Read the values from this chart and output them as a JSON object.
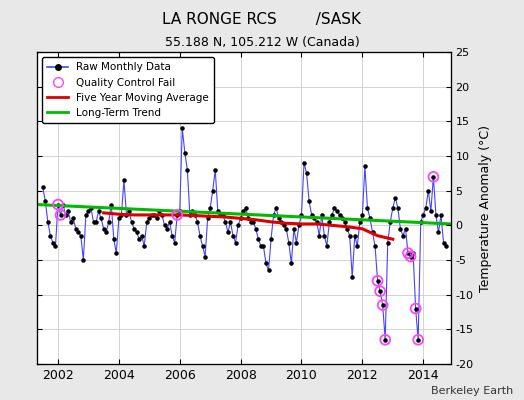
{
  "title": "LA RONGE RCS        /SASK",
  "subtitle": "55.188 N, 105.212 W (Canada)",
  "ylabel": "Temperature Anomaly (°C)",
  "credit": "Berkeley Earth",
  "ylim": [
    -20,
    25
  ],
  "xlim": [
    2001.3,
    2014.9
  ],
  "yticks": [
    -20,
    -15,
    -10,
    -5,
    0,
    5,
    10,
    15,
    20,
    25
  ],
  "xticks": [
    2002,
    2004,
    2006,
    2008,
    2010,
    2012,
    2014
  ],
  "bg_color": "#e8e8e8",
  "plot_bg": "#ffffff",
  "raw_line_color": "#4444ff",
  "raw_dot_color": "#000000",
  "qc_fail_color": "#ff44ff",
  "moving_avg_color": "#dd0000",
  "trend_color": "#00bb00",
  "raw_data": [
    [
      2001.5,
      5.5
    ],
    [
      2001.583,
      3.5
    ],
    [
      2001.667,
      0.5
    ],
    [
      2001.75,
      -1.5
    ],
    [
      2001.833,
      -2.5
    ],
    [
      2001.917,
      -3.0
    ],
    [
      2002.0,
      3.0
    ],
    [
      2002.083,
      1.5
    ],
    [
      2002.167,
      3.0
    ],
    [
      2002.25,
      1.5
    ],
    [
      2002.333,
      2.0
    ],
    [
      2002.417,
      0.5
    ],
    [
      2002.5,
      1.0
    ],
    [
      2002.583,
      -0.5
    ],
    [
      2002.667,
      -1.0
    ],
    [
      2002.75,
      -1.5
    ],
    [
      2002.833,
      -5.0
    ],
    [
      2002.917,
      1.5
    ],
    [
      2003.0,
      2.0
    ],
    [
      2003.083,
      2.5
    ],
    [
      2003.167,
      0.5
    ],
    [
      2003.25,
      0.5
    ],
    [
      2003.333,
      2.0
    ],
    [
      2003.417,
      1.0
    ],
    [
      2003.5,
      -0.5
    ],
    [
      2003.583,
      -1.0
    ],
    [
      2003.667,
      0.5
    ],
    [
      2003.75,
      3.0
    ],
    [
      2003.833,
      -2.0
    ],
    [
      2003.917,
      -4.0
    ],
    [
      2004.0,
      1.0
    ],
    [
      2004.083,
      1.5
    ],
    [
      2004.167,
      6.5
    ],
    [
      2004.25,
      1.5
    ],
    [
      2004.333,
      2.0
    ],
    [
      2004.417,
      0.5
    ],
    [
      2004.5,
      -0.5
    ],
    [
      2004.583,
      -1.0
    ],
    [
      2004.667,
      -2.0
    ],
    [
      2004.75,
      -1.5
    ],
    [
      2004.833,
      -3.0
    ],
    [
      2004.917,
      0.5
    ],
    [
      2005.0,
      1.0
    ],
    [
      2005.083,
      1.5
    ],
    [
      2005.167,
      1.5
    ],
    [
      2005.25,
      1.0
    ],
    [
      2005.333,
      2.0
    ],
    [
      2005.417,
      1.5
    ],
    [
      2005.5,
      0.0
    ],
    [
      2005.583,
      -0.5
    ],
    [
      2005.667,
      0.5
    ],
    [
      2005.75,
      -1.5
    ],
    [
      2005.833,
      -2.5
    ],
    [
      2005.917,
      1.5
    ],
    [
      2006.0,
      2.0
    ],
    [
      2006.083,
      14.0
    ],
    [
      2006.167,
      10.5
    ],
    [
      2006.25,
      8.0
    ],
    [
      2006.333,
      1.5
    ],
    [
      2006.417,
      2.0
    ],
    [
      2006.5,
      1.5
    ],
    [
      2006.583,
      0.5
    ],
    [
      2006.667,
      -1.5
    ],
    [
      2006.75,
      -3.0
    ],
    [
      2006.833,
      -4.5
    ],
    [
      2006.917,
      1.0
    ],
    [
      2007.0,
      2.5
    ],
    [
      2007.083,
      5.0
    ],
    [
      2007.167,
      8.0
    ],
    [
      2007.25,
      2.0
    ],
    [
      2007.333,
      1.5
    ],
    [
      2007.417,
      1.5
    ],
    [
      2007.5,
      0.5
    ],
    [
      2007.583,
      -1.0
    ],
    [
      2007.667,
      0.5
    ],
    [
      2007.75,
      -1.5
    ],
    [
      2007.833,
      -2.5
    ],
    [
      2007.917,
      0.0
    ],
    [
      2008.0,
      1.0
    ],
    [
      2008.083,
      2.0
    ],
    [
      2008.167,
      2.5
    ],
    [
      2008.25,
      1.0
    ],
    [
      2008.333,
      0.5
    ],
    [
      2008.417,
      0.5
    ],
    [
      2008.5,
      -0.5
    ],
    [
      2008.583,
      -2.0
    ],
    [
      2008.667,
      -3.0
    ],
    [
      2008.75,
      -3.0
    ],
    [
      2008.833,
      -5.5
    ],
    [
      2008.917,
      -6.5
    ],
    [
      2009.0,
      -2.0
    ],
    [
      2009.083,
      1.5
    ],
    [
      2009.167,
      2.5
    ],
    [
      2009.25,
      1.0
    ],
    [
      2009.333,
      0.5
    ],
    [
      2009.417,
      0.0
    ],
    [
      2009.5,
      -0.5
    ],
    [
      2009.583,
      -2.5
    ],
    [
      2009.667,
      -5.5
    ],
    [
      2009.75,
      -0.5
    ],
    [
      2009.833,
      -2.5
    ],
    [
      2009.917,
      0.0
    ],
    [
      2010.0,
      1.5
    ],
    [
      2010.083,
      9.0
    ],
    [
      2010.167,
      7.5
    ],
    [
      2010.25,
      3.5
    ],
    [
      2010.333,
      1.5
    ],
    [
      2010.417,
      1.0
    ],
    [
      2010.5,
      0.5
    ],
    [
      2010.583,
      -1.5
    ],
    [
      2010.667,
      1.5
    ],
    [
      2010.75,
      -1.5
    ],
    [
      2010.833,
      -3.0
    ],
    [
      2010.917,
      0.5
    ],
    [
      2011.0,
      1.5
    ],
    [
      2011.083,
      2.5
    ],
    [
      2011.167,
      2.0
    ],
    [
      2011.25,
      1.5
    ],
    [
      2011.333,
      1.0
    ],
    [
      2011.417,
      0.5
    ],
    [
      2011.5,
      -0.5
    ],
    [
      2011.583,
      -1.5
    ],
    [
      2011.667,
      -7.5
    ],
    [
      2011.75,
      -1.5
    ],
    [
      2011.833,
      -3.0
    ],
    [
      2011.917,
      0.5
    ],
    [
      2012.0,
      1.5
    ],
    [
      2012.083,
      8.5
    ],
    [
      2012.167,
      2.5
    ],
    [
      2012.25,
      1.0
    ],
    [
      2012.333,
      -1.0
    ],
    [
      2012.417,
      -3.0
    ],
    [
      2012.5,
      -8.0
    ],
    [
      2012.583,
      -9.5
    ],
    [
      2012.667,
      -11.5
    ],
    [
      2012.75,
      -16.5
    ],
    [
      2012.833,
      -2.5
    ],
    [
      2012.917,
      0.5
    ],
    [
      2013.0,
      2.5
    ],
    [
      2013.083,
      4.0
    ],
    [
      2013.167,
      2.5
    ],
    [
      2013.25,
      -0.5
    ],
    [
      2013.333,
      -1.5
    ],
    [
      2013.417,
      -0.5
    ],
    [
      2013.5,
      -4.0
    ],
    [
      2013.583,
      -4.5
    ],
    [
      2013.667,
      -4.0
    ],
    [
      2013.75,
      -12.0
    ],
    [
      2013.833,
      -16.5
    ],
    [
      2013.917,
      0.5
    ],
    [
      2014.0,
      1.5
    ],
    [
      2014.083,
      2.5
    ],
    [
      2014.167,
      5.0
    ],
    [
      2014.25,
      2.0
    ],
    [
      2014.333,
      7.0
    ],
    [
      2014.417,
      1.5
    ],
    [
      2014.5,
      -1.0
    ],
    [
      2014.583,
      1.5
    ],
    [
      2014.667,
      -2.5
    ],
    [
      2014.75,
      -3.0
    ]
  ],
  "qc_fail_points": [
    [
      2002.0,
      3.0
    ],
    [
      2002.083,
      1.5
    ],
    [
      2005.917,
      1.5
    ],
    [
      2012.5,
      -8.0
    ],
    [
      2012.583,
      -9.5
    ],
    [
      2012.667,
      -11.5
    ],
    [
      2012.75,
      -16.5
    ],
    [
      2013.5,
      -4.0
    ],
    [
      2013.583,
      -4.5
    ],
    [
      2013.75,
      -12.0
    ],
    [
      2013.833,
      -16.5
    ],
    [
      2014.333,
      7.0
    ]
  ],
  "moving_avg": [
    [
      2003.5,
      1.8
    ],
    [
      2004.0,
      1.6
    ],
    [
      2004.5,
      1.5
    ],
    [
      2005.0,
      1.5
    ],
    [
      2005.5,
      1.5
    ],
    [
      2006.0,
      1.5
    ],
    [
      2006.5,
      1.4
    ],
    [
      2007.0,
      1.3
    ],
    [
      2007.5,
      1.2
    ],
    [
      2008.0,
      1.0
    ],
    [
      2008.5,
      0.8
    ],
    [
      2009.0,
      0.5
    ],
    [
      2009.5,
      0.3
    ],
    [
      2010.0,
      0.2
    ],
    [
      2010.5,
      0.2
    ],
    [
      2011.0,
      0.0
    ],
    [
      2011.5,
      -0.2
    ],
    [
      2012.0,
      -0.5
    ],
    [
      2012.5,
      -1.5
    ],
    [
      2013.0,
      -2.0
    ]
  ],
  "trend_x": [
    2001.3,
    2014.9
  ],
  "trend_y": [
    3.0,
    0.2
  ]
}
